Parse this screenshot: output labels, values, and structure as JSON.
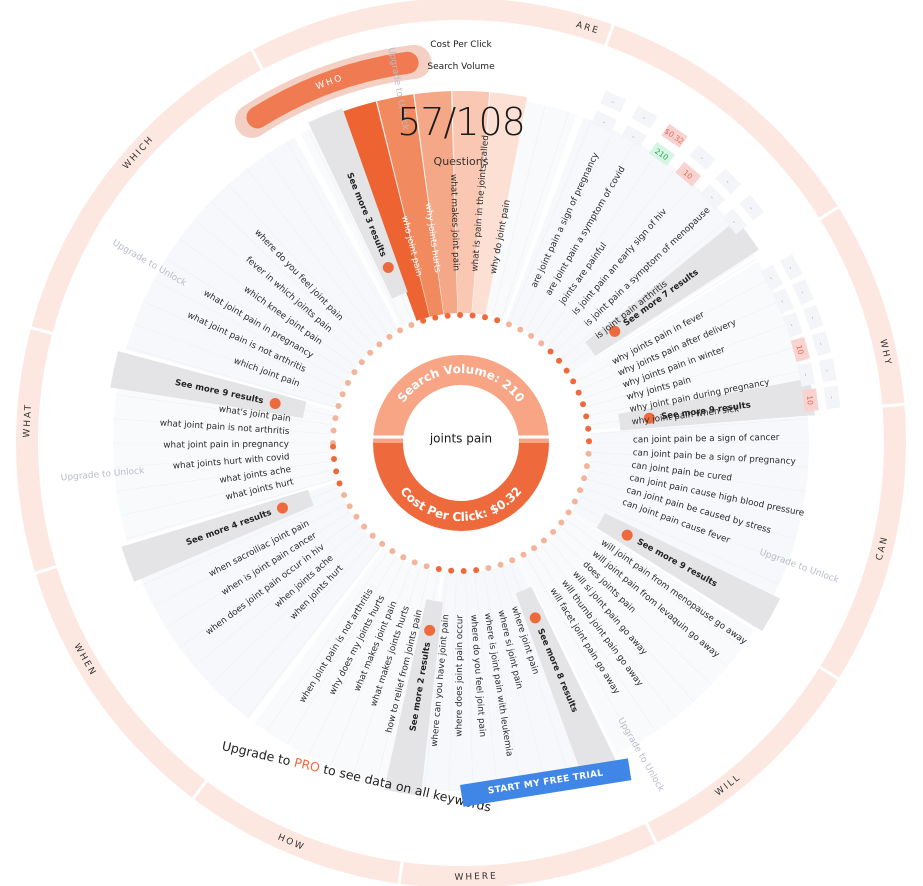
{
  "legend": {
    "cpc": "Cost Per Click",
    "sv": "Search Volume"
  },
  "counter": {
    "value": "57/108",
    "label": "Questions"
  },
  "center": {
    "keyword": "joints pain",
    "sv_label": "Search Volume: 210",
    "cpc_label": "Cost Per Click: $0.32"
  },
  "categories": [
    "WHO",
    "ARE",
    "WHY",
    "CAN",
    "WILL",
    "WHERE",
    "HOW",
    "WHEN",
    "WHAT",
    "WHICH"
  ],
  "locked_label": "Upgrade to Unlock",
  "see_more": {
    "who": "See more 3 results",
    "are": "See more 7 results",
    "why": "See more 9 results",
    "can": "See more 9 results",
    "where": "See more 8 results",
    "how": "See more 2 results",
    "when": "See more 4 results",
    "what": "See more 9 results"
  },
  "questions": {
    "who": [
      "who joint pain",
      "why joints hurts",
      "what makes joint pain",
      "what is pain in the joints called",
      "why do joint pain"
    ],
    "are": [
      "are joint pain a sign of pregnancy",
      "are joint pain a symptom of covid",
      "joints are painful",
      "is joint pain an early sign of hiv",
      "is joint pain a symptom of menopause",
      "is joint pain arthritis"
    ],
    "why": [
      "why joints pain in fever",
      "why joints pain after delivery",
      "why joints pain in winter",
      "why joints pain",
      "why joint pain during pregnancy",
      "why joint pain when sick"
    ],
    "can": [
      "can joint pain be a sign of cancer",
      "can joint pain be a sign of pregnancy",
      "can joint pain be cured",
      "can joint pain cause high blood pressure",
      "can joint pain be caused by stress",
      "can joint pain cause fever"
    ],
    "will": [
      "will joint pain from menopause go away",
      "will joint pain from levaquin go away",
      "does joints pain",
      "will si joint pain go away",
      "will thumb joint pain go away",
      "will facet joint pain go away"
    ],
    "where": [
      "where joint pain",
      "where si joint pain",
      "where is joint pain with leukemia",
      "where do you feel joint pain",
      "where does joint pain occur",
      "where can you have joint pain"
    ],
    "how": [
      "how to relief from joints pain",
      "what makes joints hurts",
      "what makes joint pain",
      "why does my joints hurts",
      "when joint pain is not arthritis"
    ],
    "when": [
      "when joints hurt",
      "when joints ache",
      "when does joint pain occur in hiv",
      "when is joint pain cancer",
      "when sacroiliac joint pain"
    ],
    "what": [
      "what joints hurt",
      "what joints ache",
      "what joints hurt with covid",
      "what joint pain in pregnancy",
      "what joint pain is not arthritis",
      "what's joint pain"
    ],
    "which": [
      "which joint pain",
      "what joint pain is not arthritis",
      "what joint pain in pregnancy",
      "which knee joint pain",
      "fever in which joints pain",
      "where do you feel joint pain"
    ]
  },
  "metrics": {
    "are": {
      "cpc": [
        "-",
        "-",
        "$0.32",
        "-",
        "-",
        "-"
      ],
      "sv": [
        "-",
        "-",
        "210",
        "10",
        "-",
        "-"
      ]
    },
    "why": {
      "cpc": [
        "-",
        "-",
        "-",
        "-",
        "-",
        "-"
      ],
      "sv": [
        "-",
        "-",
        "-",
        "10",
        "-",
        "10"
      ]
    }
  },
  "cta": {
    "prefix": "Upgrade to ",
    "pro": "PRO",
    "suffix": " to see data on all keywords",
    "button": "START MY FREE TRIAL"
  },
  "colors": {
    "accent": "#ee6a3c",
    "accent_light": "#f7a585",
    "ring": "#fde8e1",
    "button": "#3f86e6"
  }
}
